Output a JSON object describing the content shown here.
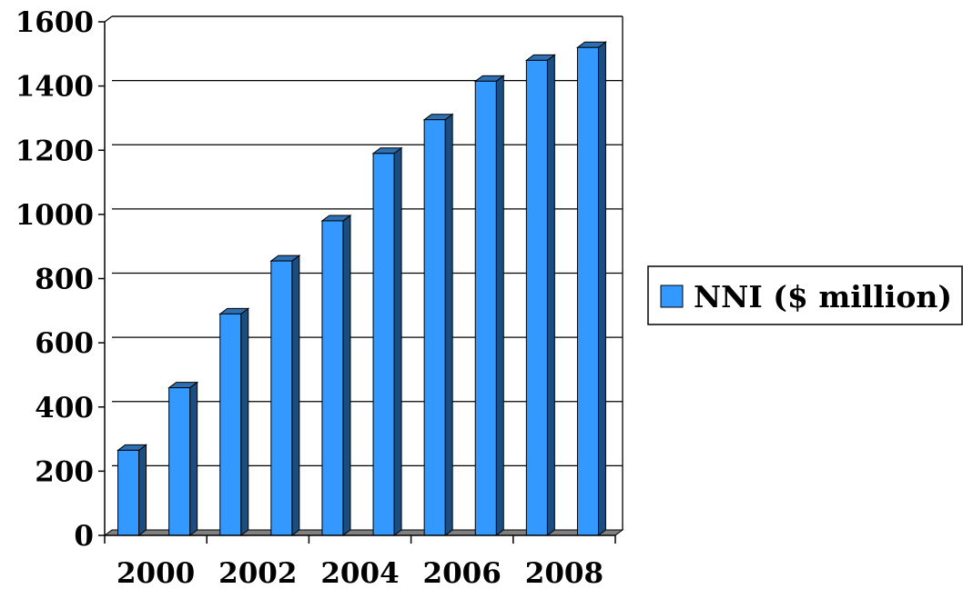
{
  "chart_data": {
    "type": "bar",
    "title": "",
    "xlabel": "",
    "ylabel": "",
    "x": [
      2000,
      2001,
      2002,
      2003,
      2004,
      2005,
      2006,
      2007,
      2008,
      2009
    ],
    "x_tick_labels": [
      "2000",
      "2002",
      "2004",
      "2006",
      "2008"
    ],
    "series": [
      {
        "name": "NNI ($ million)",
        "values": [
          265,
          460,
          690,
          855,
          980,
          1190,
          1295,
          1415,
          1480,
          1520
        ],
        "color": "#3399ff"
      }
    ],
    "ylim": [
      0,
      1600
    ],
    "y_ticks": [
      0,
      200,
      400,
      600,
      800,
      1000,
      1200,
      1400,
      1600
    ],
    "grid": true,
    "legend_position": "right",
    "style": "3d-bar"
  }
}
